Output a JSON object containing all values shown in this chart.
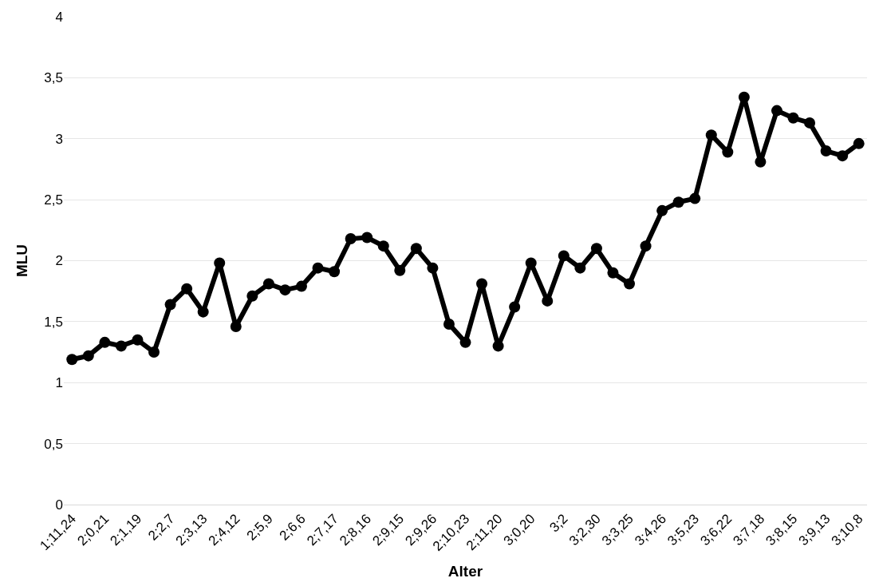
{
  "chart_data": {
    "type": "line",
    "xlabel": "Alter",
    "ylabel": "MLU",
    "categories": [
      "1;11,24",
      null,
      "2;0,21",
      null,
      "2;1,19",
      null,
      "2;2,7",
      null,
      "2;3,13",
      null,
      "2;4,12",
      null,
      "2;5,9",
      null,
      "2;6,6",
      null,
      "2;7,17",
      null,
      "2;8,16",
      null,
      "2;9,15",
      null,
      "2;9,26",
      null,
      "2;10,23",
      null,
      "2;11,20",
      null,
      "3;0,20",
      null,
      "3;2",
      null,
      "3;2,30",
      null,
      "3;3,25",
      null,
      "3;4,26",
      null,
      "3;5,23",
      null,
      "3;6,22",
      null,
      "3;7,18",
      null,
      "3;8,15",
      null,
      "3;9,13",
      null,
      "3;10,8"
    ],
    "series": [
      {
        "color": "#000000",
        "values": [
          1.19,
          1.22,
          1.33,
          1.3,
          1.35,
          1.25,
          1.64,
          1.77,
          1.58,
          1.98,
          1.46,
          1.71,
          1.81,
          1.76,
          1.79,
          1.94,
          1.91,
          2.18,
          2.19,
          2.12,
          1.92,
          2.1,
          1.94,
          1.48,
          1.33,
          1.81,
          1.3,
          1.62,
          1.98,
          1.67,
          2.04,
          1.94,
          2.1,
          1.9,
          1.81,
          2.12,
          2.41,
          2.48,
          2.51,
          3.03,
          2.89,
          3.34,
          2.81,
          3.23,
          3.17,
          3.13,
          2.9,
          2.86,
          2.96
        ]
      }
    ],
    "ylim": [
      0,
      4
    ],
    "yticks": [
      0,
      {
        "value": 0.5,
        "label": "0,5"
      },
      1,
      {
        "value": 1.5,
        "label": "1,5"
      },
      2,
      {
        "value": 2.5,
        "label": "2,5"
      },
      3,
      {
        "value": 3.5,
        "label": "3,5"
      },
      4
    ],
    "grid": "y",
    "marker": "circle",
    "line_style": "solid"
  }
}
